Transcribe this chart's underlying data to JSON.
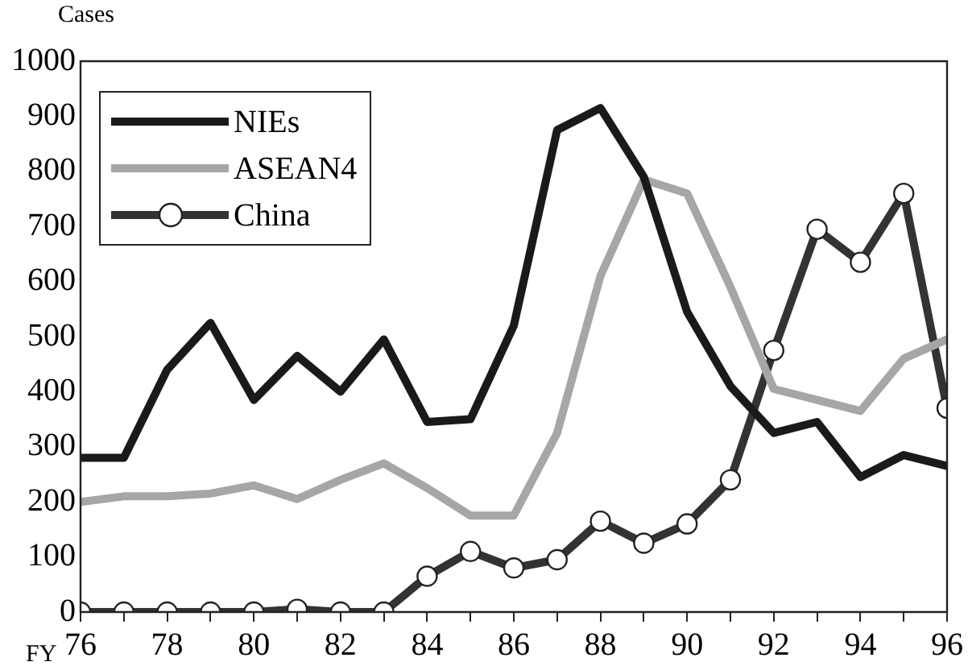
{
  "chart_data": {
    "type": "line",
    "xlabel": "FY",
    "ylabel": "Cases",
    "x": [
      76,
      77,
      78,
      79,
      80,
      81,
      82,
      83,
      84,
      85,
      86,
      87,
      88,
      89,
      90,
      91,
      92,
      93,
      94,
      95,
      96
    ],
    "series": [
      {
        "name": "NIEs",
        "color": "#1a1a1a",
        "marker": "none",
        "values": [
          280,
          280,
          440,
          525,
          385,
          465,
          400,
          495,
          345,
          350,
          520,
          875,
          915,
          790,
          545,
          410,
          325,
          345,
          245,
          285,
          265
        ]
      },
      {
        "name": "ASEAN4",
        "color": "#a6a6a6",
        "marker": "none",
        "values": [
          200,
          210,
          210,
          215,
          230,
          205,
          240,
          270,
          225,
          175,
          175,
          325,
          610,
          785,
          760,
          590,
          405,
          385,
          365,
          460,
          495
        ]
      },
      {
        "name": "China",
        "color": "#333333",
        "marker": "circle",
        "values": [
          0,
          0,
          0,
          0,
          0,
          5,
          0,
          0,
          65,
          110,
          80,
          95,
          165,
          125,
          160,
          240,
          475,
          695,
          635,
          760,
          370
        ]
      }
    ],
    "xlim": [
      76,
      96
    ],
    "xticks": [
      76,
      {
        "value": 77,
        "label": null
      },
      78,
      {
        "value": 79,
        "label": null
      },
      80,
      {
        "value": 81,
        "label": null
      },
      82,
      {
        "value": 83,
        "label": null
      },
      84,
      {
        "value": 85,
        "label": null
      },
      86,
      {
        "value": 87,
        "label": null
      },
      88,
      {
        "value": 89,
        "label": null
      },
      90,
      {
        "value": 91,
        "label": null
      },
      92,
      {
        "value": 93,
        "label": null
      },
      94,
      {
        "value": 95,
        "label": null
      },
      96
    ],
    "ylim": [
      0,
      1000
    ],
    "yticks": [
      0,
      100,
      200,
      300,
      400,
      500,
      600,
      700,
      800,
      900,
      1000
    ],
    "grid": false,
    "legend": "top left",
    "line_style": "solid"
  }
}
